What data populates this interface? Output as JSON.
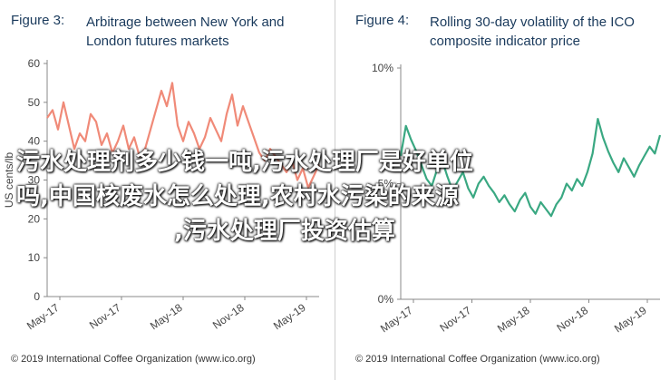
{
  "left": {
    "fig_label": "Figure 3:",
    "title_lines": [
      "Arbitrage between New York and",
      "London futures markets"
    ],
    "credit": "© 2019 International Coffee Organization (www.ico.org)"
  },
  "right": {
    "fig_label": "Figure 4:",
    "title_lines": [
      "Rolling 30-day volatility of the ICO",
      "composite indicator price"
    ],
    "credit": "© 2019 International Coffee Organization (www.ico.org)"
  },
  "overlay": {
    "line1": "污水处理剂多少钱一吨,污水处理厂是好单位",
    "line2": "吗,中国核废水怎么处理,农村水污染的来源",
    "line3": ",污水处理厂投资估算"
  },
  "chart_data": [
    {
      "type": "line",
      "title": "Arbitrage between New York and London futures markets",
      "ylabel": "US cents/lb",
      "ylim": [
        0,
        60
      ],
      "yticks": [
        "0",
        "10",
        "20",
        "30",
        "40",
        "50",
        "60"
      ],
      "xticks": [
        "May-17",
        "Nov-17",
        "May-18",
        "Nov-18",
        "May-19"
      ],
      "color": "#f08a78",
      "series": [
        {
          "x": [
            0,
            0.5,
            1,
            1.5,
            2,
            2.5,
            3,
            3.5,
            4,
            4.5,
            5,
            5.5,
            6,
            6.5,
            7,
            7.5,
            8,
            8.5,
            9,
            9.5,
            10,
            10.5,
            11,
            11.5,
            12,
            12.5,
            13,
            13.5,
            14,
            14.5,
            15,
            15.5,
            16,
            16.5,
            17,
            17.5,
            18,
            18.5,
            19,
            19.5,
            20,
            20.5,
            21,
            21.5,
            22,
            22.5,
            23,
            23.5,
            24,
            24.5,
            25
          ],
          "values": [
            46,
            48,
            43,
            50,
            44,
            38,
            42,
            40,
            47,
            45,
            39,
            42,
            37,
            40,
            44,
            38,
            41,
            36,
            38,
            43,
            48,
            53,
            49,
            55,
            44,
            40,
            45,
            42,
            38,
            41,
            46,
            43,
            40,
            47,
            52,
            44,
            49,
            45,
            41,
            37,
            35,
            38,
            36,
            34,
            32,
            35,
            30,
            33,
            28,
            31,
            34
          ]
        }
      ]
    },
    {
      "type": "line",
      "title": "Rolling 30-day volatility of the ICO composite indicator price",
      "ylim": [
        0,
        10
      ],
      "yticks": [
        "0%",
        "5%",
        "10%"
      ],
      "xticks": [
        "May-17",
        "Nov-17",
        "May-18",
        "Nov-18",
        "May-19"
      ],
      "color": "#3aa882",
      "series": [
        {
          "x": [
            0,
            0.5,
            1,
            1.5,
            2,
            2.5,
            3,
            3.5,
            4,
            4.5,
            5,
            5.5,
            6,
            6.5,
            7,
            7.5,
            8,
            8.5,
            9,
            9.5,
            10,
            10.5,
            11,
            11.5,
            12,
            12.5,
            13,
            13.5,
            14,
            14.5,
            15,
            15.5,
            16,
            16.5,
            17,
            17.5,
            18,
            18.5,
            19,
            19.5,
            20,
            20.5,
            21,
            21.5,
            22,
            22.5,
            23,
            23.5,
            24,
            24.5,
            25
          ],
          "values": [
            6.2,
            7.5,
            6.9,
            6.4,
            5.8,
            5.2,
            4.9,
            5.6,
            6.0,
            5.3,
            4.7,
            5.1,
            5.5,
            4.8,
            4.4,
            5.0,
            5.3,
            4.9,
            4.6,
            4.2,
            4.5,
            4.1,
            3.8,
            4.3,
            4.6,
            4.0,
            3.7,
            4.2,
            3.9,
            3.6,
            4.1,
            4.4,
            5.0,
            4.7,
            5.2,
            4.9,
            5.5,
            6.3,
            7.8,
            7.0,
            6.4,
            5.9,
            5.5,
            6.1,
            5.7,
            5.3,
            5.8,
            6.2,
            6.6,
            6.3,
            7.1
          ]
        }
      ]
    }
  ]
}
